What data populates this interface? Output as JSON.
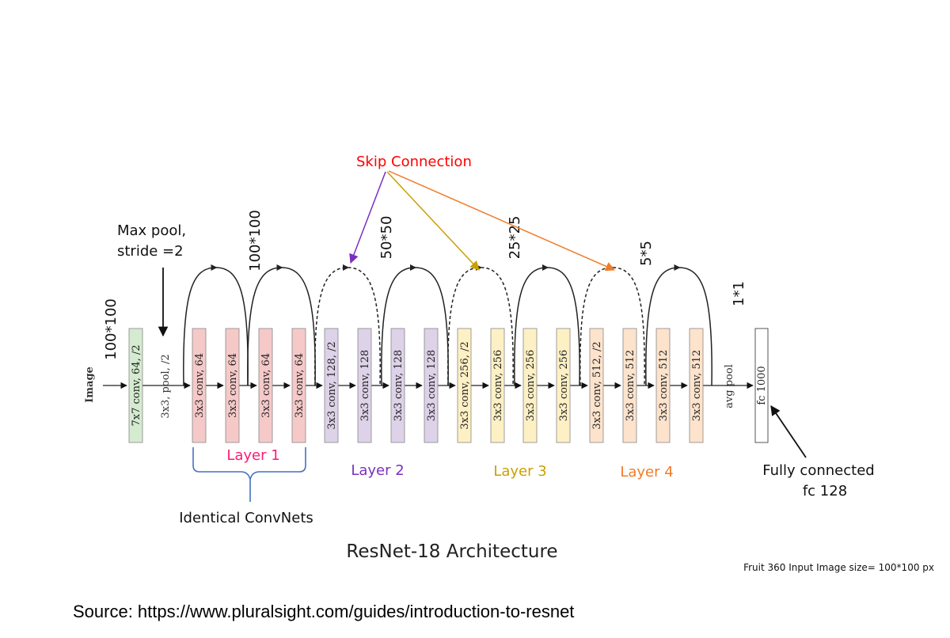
{
  "input_label": "Image",
  "blocks": [
    {
      "label": "7x7 conv, 64, /2",
      "color": "#d4ebd0"
    },
    {
      "label": "3x3 conv, 64",
      "color": "#f6c9c9"
    },
    {
      "label": "3x3 conv, 64",
      "color": "#f6c9c9"
    },
    {
      "label": "3x3 conv, 64",
      "color": "#f6c9c9"
    },
    {
      "label": "3x3 conv, 64",
      "color": "#f6c9c9"
    },
    {
      "label": "3x3 conv, 128, /2",
      "color": "#ddd2e8"
    },
    {
      "label": "3x3 conv, 128",
      "color": "#ddd2e8"
    },
    {
      "label": "3x3 conv, 128",
      "color": "#ddd2e8"
    },
    {
      "label": "3x3 conv, 128",
      "color": "#ddd2e8"
    },
    {
      "label": "3x3 conv, 256, /2",
      "color": "#fdf0c4"
    },
    {
      "label": "3x3 conv, 256",
      "color": "#fdf0c4"
    },
    {
      "label": "3x3 conv, 256",
      "color": "#fdf0c4"
    },
    {
      "label": "3x3 conv, 256",
      "color": "#fdf0c4"
    },
    {
      "label": "3x3 conv, 512, /2",
      "color": "#fde3cc"
    },
    {
      "label": "3x3 conv, 512",
      "color": "#fde3cc"
    },
    {
      "label": "3x3 conv, 512",
      "color": "#fde3cc"
    },
    {
      "label": "3x3 conv, 512",
      "color": "#fde3cc"
    }
  ],
  "pool_label": "3x3, pool, /2",
  "avgpool_label": "avg pool",
  "fc_label": "fc 1000",
  "dims": [
    "100*100",
    "100*100",
    "50*50",
    "25*25",
    "5*5",
    "1*1"
  ],
  "maxpool_note": {
    "line1": "Max pool,",
    "line2": "stride =2"
  },
  "skip_label": "Skip Connection",
  "layers": [
    {
      "label": "Layer 1",
      "color": "#ff1a75"
    },
    {
      "label": "Layer 2",
      "color": "#7b2fbe"
    },
    {
      "label": "Layer 3",
      "color": "#c9a000"
    },
    {
      "label": "Layer 4",
      "color": "#f07b28"
    }
  ],
  "identical_label": "Identical ConvNets",
  "fc_note": {
    "line1": "Fully connected",
    "line2": "fc 128"
  },
  "title": "ResNet-18 Architecture",
  "input_size_note": "Fruit 360 Input Image size= 100*100 px",
  "source": "Source: https://www.pluralsight.com/guides/introduction-to-resnet",
  "colors": {
    "skip": "#ff0000",
    "skip_arrow_2": "#7b2fbe",
    "skip_arrow_3": "#c9a000",
    "skip_arrow_4": "#f07b28",
    "brace": "#4472c4"
  }
}
